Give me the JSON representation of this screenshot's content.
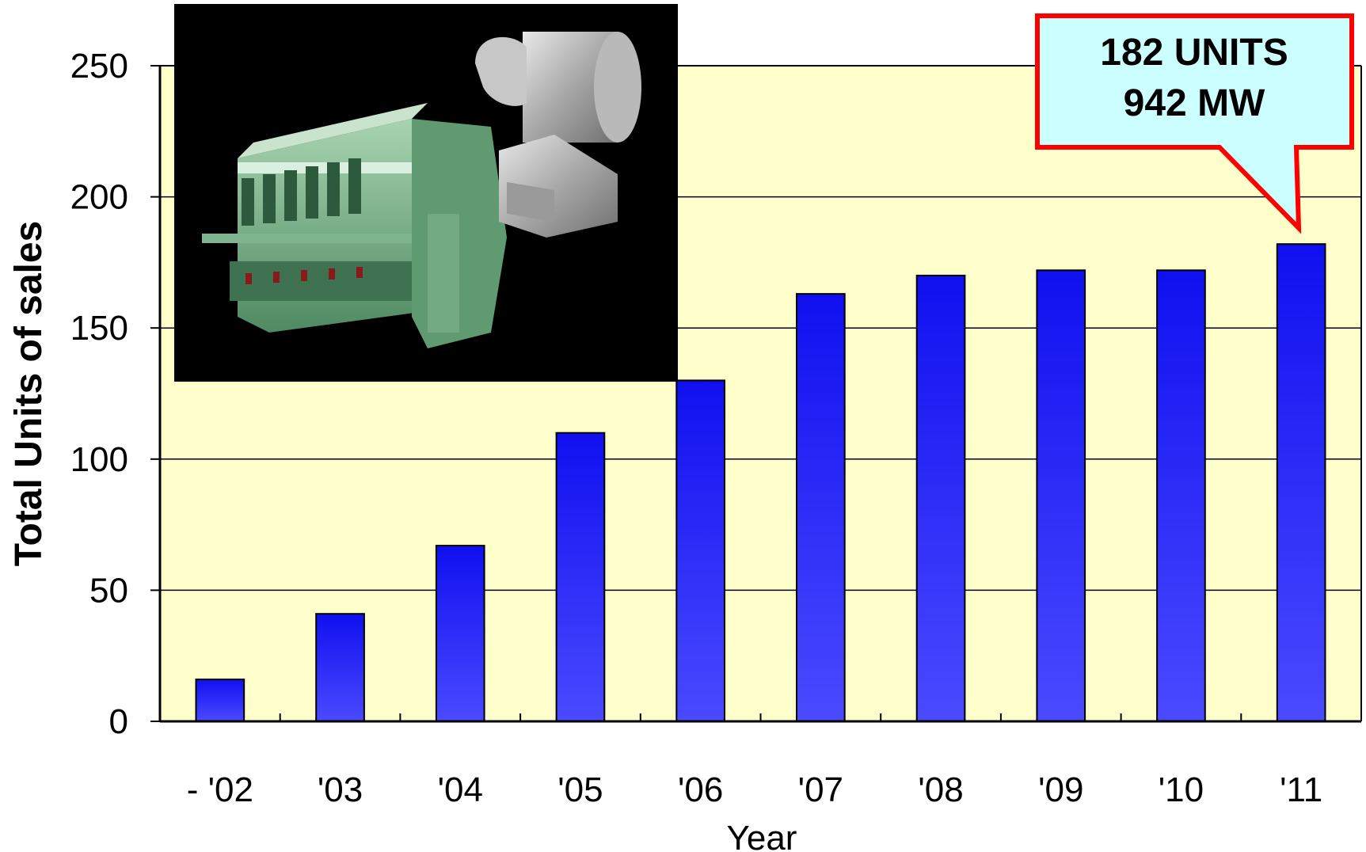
{
  "chart_data": {
    "type": "bar",
    "categories": [
      "- '02",
      "'03",
      "'04",
      "'05",
      "'06",
      "'07",
      "'08",
      "'09",
      "'10",
      "'11"
    ],
    "values": [
      16,
      41,
      67,
      110,
      130,
      163,
      170,
      172,
      172,
      182
    ],
    "title": "",
    "xlabel": "Year",
    "ylabel": "Total Units of sales",
    "ylim": [
      0,
      250
    ],
    "yticks": [
      0,
      50,
      100,
      150,
      200,
      250
    ],
    "grid": true,
    "legend": "none",
    "colors": {
      "bar_top": "#1010f0",
      "bar_bottom": "#4a4aff",
      "plot_background": "#ffffcc",
      "gridline": "#000000",
      "callout_fill": "#ccffff",
      "callout_border": "#ff0000"
    },
    "annotation": {
      "line1": "182 UNITS",
      "line2": "942 MW",
      "target_category": "'11"
    },
    "inset_image": {
      "icon": "diesel-engine-photo",
      "background": "#000000"
    }
  }
}
